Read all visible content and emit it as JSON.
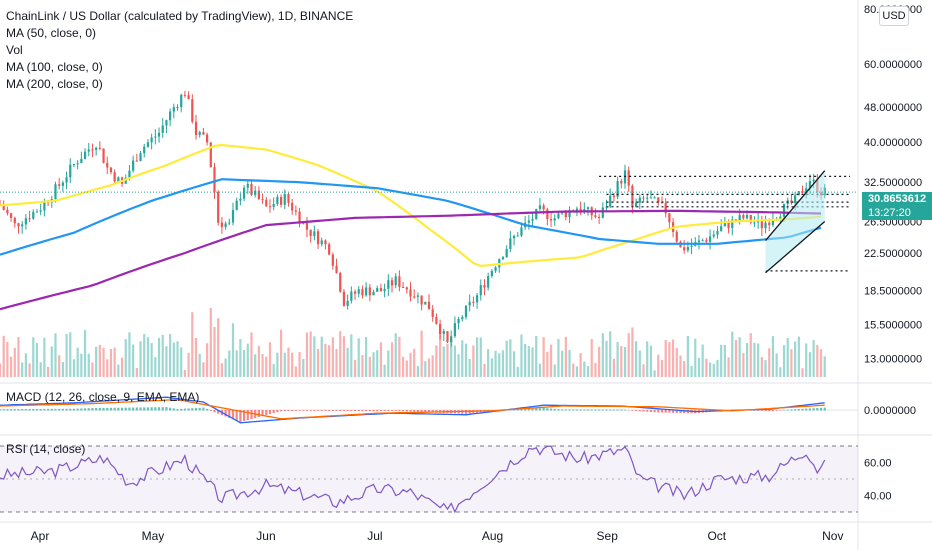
{
  "legend": {
    "title": "ChainLink / US Dollar (calculated by TradingView), 1D, BINANCE",
    "lines": [
      "MA (50, close, 0)",
      "Vol",
      "MA (100, close, 0)",
      "MA (200, close, 0)"
    ]
  },
  "currency_button": "USD",
  "macd_label": "MACD (12, 26, close, 9, EMA, EMA)",
  "rsi_label": "RSI (14, close)",
  "last_price": {
    "value": "30.8653612",
    "countdown": "13:27:20"
  },
  "colors": {
    "up": "#26a69a",
    "down": "#ef5350",
    "ma50": "#ffeb3b",
    "ma100": "#2196f3",
    "ma200": "#9c27b0",
    "rsi": "#7e57c2",
    "macd": "#2962ff",
    "signal": "#ff6d00",
    "channel_fill": "#b2ebf2"
  },
  "chart_data": [
    {
      "type": "candlestick",
      "title": "ChainLink / US Dollar (calculated by TradingView), 1D, BINANCE",
      "y_scale": "log",
      "ylim": [
        12.0,
        82.0
      ],
      "y_ticks": [
        "80.0000000",
        "60.0000000",
        "48.0000000",
        "40.0000000",
        "32.5000000",
        "26.5000000",
        "22.5000000",
        "18.5000000",
        "15.5000000",
        "13.0000000"
      ],
      "x_ticks": [
        "Apr",
        "May",
        "Jun",
        "Jul",
        "Aug",
        "Sep",
        "Oct",
        "Nov"
      ],
      "x_range": [
        "2021-03-21",
        "2021-11-08"
      ],
      "anchors": [
        [
          "2021-03-21",
          29.0
        ],
        [
          "2021-03-25",
          26.0
        ],
        [
          "2021-04-01",
          28.5
        ],
        [
          "2021-04-06",
          32.0
        ],
        [
          "2021-04-11",
          36.5
        ],
        [
          "2021-04-16",
          40.0
        ],
        [
          "2021-04-19",
          35.0
        ],
        [
          "2021-04-23",
          32.0
        ],
        [
          "2021-04-28",
          38.5
        ],
        [
          "2021-05-03",
          42.0
        ],
        [
          "2021-05-07",
          48.0
        ],
        [
          "2021-05-10",
          52.0
        ],
        [
          "2021-05-13",
          42.0
        ],
        [
          "2021-05-16",
          40.0
        ],
        [
          "2021-05-19",
          26.5
        ],
        [
          "2021-05-22",
          26.0
        ],
        [
          "2021-05-26",
          32.0
        ],
        [
          "2021-06-01",
          28.5
        ],
        [
          "2021-06-06",
          30.0
        ],
        [
          "2021-06-12",
          25.5
        ],
        [
          "2021-06-18",
          23.0
        ],
        [
          "2021-06-22",
          17.5
        ],
        [
          "2021-06-26",
          18.5
        ],
        [
          "2021-07-02",
          18.5
        ],
        [
          "2021-07-06",
          19.5
        ],
        [
          "2021-07-10",
          18.5
        ],
        [
          "2021-07-15",
          17.0
        ],
        [
          "2021-07-20",
          14.0
        ],
        [
          "2021-07-23",
          15.8
        ],
        [
          "2021-07-28",
          18.0
        ],
        [
          "2021-08-03",
          22.0
        ],
        [
          "2021-08-08",
          25.0
        ],
        [
          "2021-08-14",
          28.0
        ],
        [
          "2021-08-18",
          27.0
        ],
        [
          "2021-08-24",
          28.5
        ],
        [
          "2021-08-30",
          27.0
        ],
        [
          "2021-09-04",
          32.0
        ],
        [
          "2021-09-06",
          34.0
        ],
        [
          "2021-09-08",
          28.5
        ],
        [
          "2021-09-12",
          30.0
        ],
        [
          "2021-09-17",
          28.0
        ],
        [
          "2021-09-21",
          23.0
        ],
        [
          "2021-09-25",
          23.5
        ],
        [
          "2021-09-29",
          24.5
        ],
        [
          "2021-10-03",
          26.0
        ],
        [
          "2021-10-08",
          27.0
        ],
        [
          "2021-10-13",
          26.0
        ],
        [
          "2021-10-18",
          28.0
        ],
        [
          "2021-10-22",
          29.5
        ],
        [
          "2021-10-26",
          33.0
        ],
        [
          "2021-10-29",
          31.0
        ],
        [
          "2021-10-30",
          30.8653612
        ]
      ],
      "series": [
        {
          "name": "MA (50, close, 0)",
          "points": [
            [
              "2021-03-21",
              28.8
            ],
            [
              "2021-04-05",
              29.5
            ],
            [
              "2021-04-20",
              32.0
            ],
            [
              "2021-05-05",
              35.5
            ],
            [
              "2021-05-19",
              39.5
            ],
            [
              "2021-06-01",
              38.5
            ],
            [
              "2021-06-15",
              35.5
            ],
            [
              "2021-07-01",
              31.0
            ],
            [
              "2021-07-15",
              25.5
            ],
            [
              "2021-07-28",
              21.0
            ],
            [
              "2021-08-10",
              21.5
            ],
            [
              "2021-08-25",
              22.0
            ],
            [
              "2021-09-08",
              24.0
            ],
            [
              "2021-09-20",
              25.8
            ],
            [
              "2021-10-05",
              26.5
            ],
            [
              "2021-10-20",
              26.8
            ],
            [
              "2021-10-30",
              27.2
            ]
          ]
        },
        {
          "name": "MA (100, close, 0)",
          "points": [
            [
              "2021-03-21",
              22.3
            ],
            [
              "2021-04-10",
              25.0
            ],
            [
              "2021-05-01",
              29.5
            ],
            [
              "2021-05-20",
              33.0
            ],
            [
              "2021-06-10",
              32.5
            ],
            [
              "2021-07-01",
              31.5
            ],
            [
              "2021-07-20",
              29.5
            ],
            [
              "2021-08-10",
              26.0
            ],
            [
              "2021-08-30",
              24.2
            ],
            [
              "2021-09-15",
              23.6
            ],
            [
              "2021-10-01",
              23.6
            ],
            [
              "2021-10-20",
              24.4
            ],
            [
              "2021-10-30",
              25.8
            ]
          ]
        },
        {
          "name": "MA (200, close, 0)",
          "points": [
            [
              "2021-03-21",
              16.8
            ],
            [
              "2021-04-15",
              19.0
            ],
            [
              "2021-05-10",
              22.5
            ],
            [
              "2021-06-01",
              26.0
            ],
            [
              "2021-06-25",
              27.0
            ],
            [
              "2021-07-20",
              27.3
            ],
            [
              "2021-08-20",
              27.9
            ],
            [
              "2021-09-20",
              28.0
            ],
            [
              "2021-10-15",
              27.8
            ],
            [
              "2021-10-30",
              27.6
            ]
          ]
        }
      ],
      "horizontal_levels": [
        33.5,
        30.5,
        29.3,
        28.6,
        20.5
      ],
      "last_price": 30.8653612
    },
    {
      "type": "line",
      "title": "MACD (12, 26, close, 9, EMA, EMA)",
      "y_ticks": [
        "0.0000000"
      ],
      "series": [
        {
          "name": "MACD",
          "points": [
            [
              "2021-03-21",
              0.6
            ],
            [
              "2021-04-10",
              0.9
            ],
            [
              "2021-05-05",
              1.6
            ],
            [
              "2021-05-15",
              1.0
            ],
            [
              "2021-05-25",
              -1.6
            ],
            [
              "2021-06-10",
              -1.0
            ],
            [
              "2021-07-05",
              -0.4
            ],
            [
              "2021-07-25",
              -0.6
            ],
            [
              "2021-08-15",
              0.6
            ],
            [
              "2021-09-05",
              0.5
            ],
            [
              "2021-09-25",
              -0.2
            ],
            [
              "2021-10-15",
              0.1
            ],
            [
              "2021-10-30",
              0.9
            ]
          ]
        },
        {
          "name": "Signal",
          "points": [
            [
              "2021-03-21",
              0.5
            ],
            [
              "2021-04-15",
              0.8
            ],
            [
              "2021-05-08",
              1.3
            ],
            [
              "2021-05-22",
              0.1
            ],
            [
              "2021-06-05",
              -1.1
            ],
            [
              "2021-07-01",
              -0.4
            ],
            [
              "2021-08-01",
              -0.1
            ],
            [
              "2021-08-20",
              0.5
            ],
            [
              "2021-09-15",
              0.4
            ],
            [
              "2021-10-05",
              -0.1
            ],
            [
              "2021-10-30",
              0.6
            ]
          ]
        }
      ]
    },
    {
      "type": "line",
      "title": "RSI (14, close)",
      "y_ticks": [
        "60.00",
        "40.00"
      ],
      "bands": [
        30,
        70
      ],
      "series": [
        {
          "name": "RSI (14, close)",
          "points": [
            [
              "2021-03-21",
              52
            ],
            [
              "2021-04-05",
              55
            ],
            [
              "2021-04-18",
              63
            ],
            [
              "2021-04-25",
              48
            ],
            [
              "2021-05-10",
              62
            ],
            [
              "2021-05-20",
              38
            ],
            [
              "2021-06-01",
              46
            ],
            [
              "2021-06-20",
              36
            ],
            [
              "2021-07-01",
              44
            ],
            [
              "2021-07-10",
              42
            ],
            [
              "2021-07-20",
              30
            ],
            [
              "2021-08-01",
              52
            ],
            [
              "2021-08-12",
              70
            ],
            [
              "2021-08-25",
              62
            ],
            [
              "2021-09-06",
              68
            ],
            [
              "2021-09-10",
              50
            ],
            [
              "2021-09-22",
              40
            ],
            [
              "2021-10-01",
              50
            ],
            [
              "2021-10-15",
              52
            ],
            [
              "2021-10-25",
              68
            ],
            [
              "2021-10-28",
              56
            ],
            [
              "2021-10-30",
              58
            ]
          ]
        }
      ]
    }
  ]
}
